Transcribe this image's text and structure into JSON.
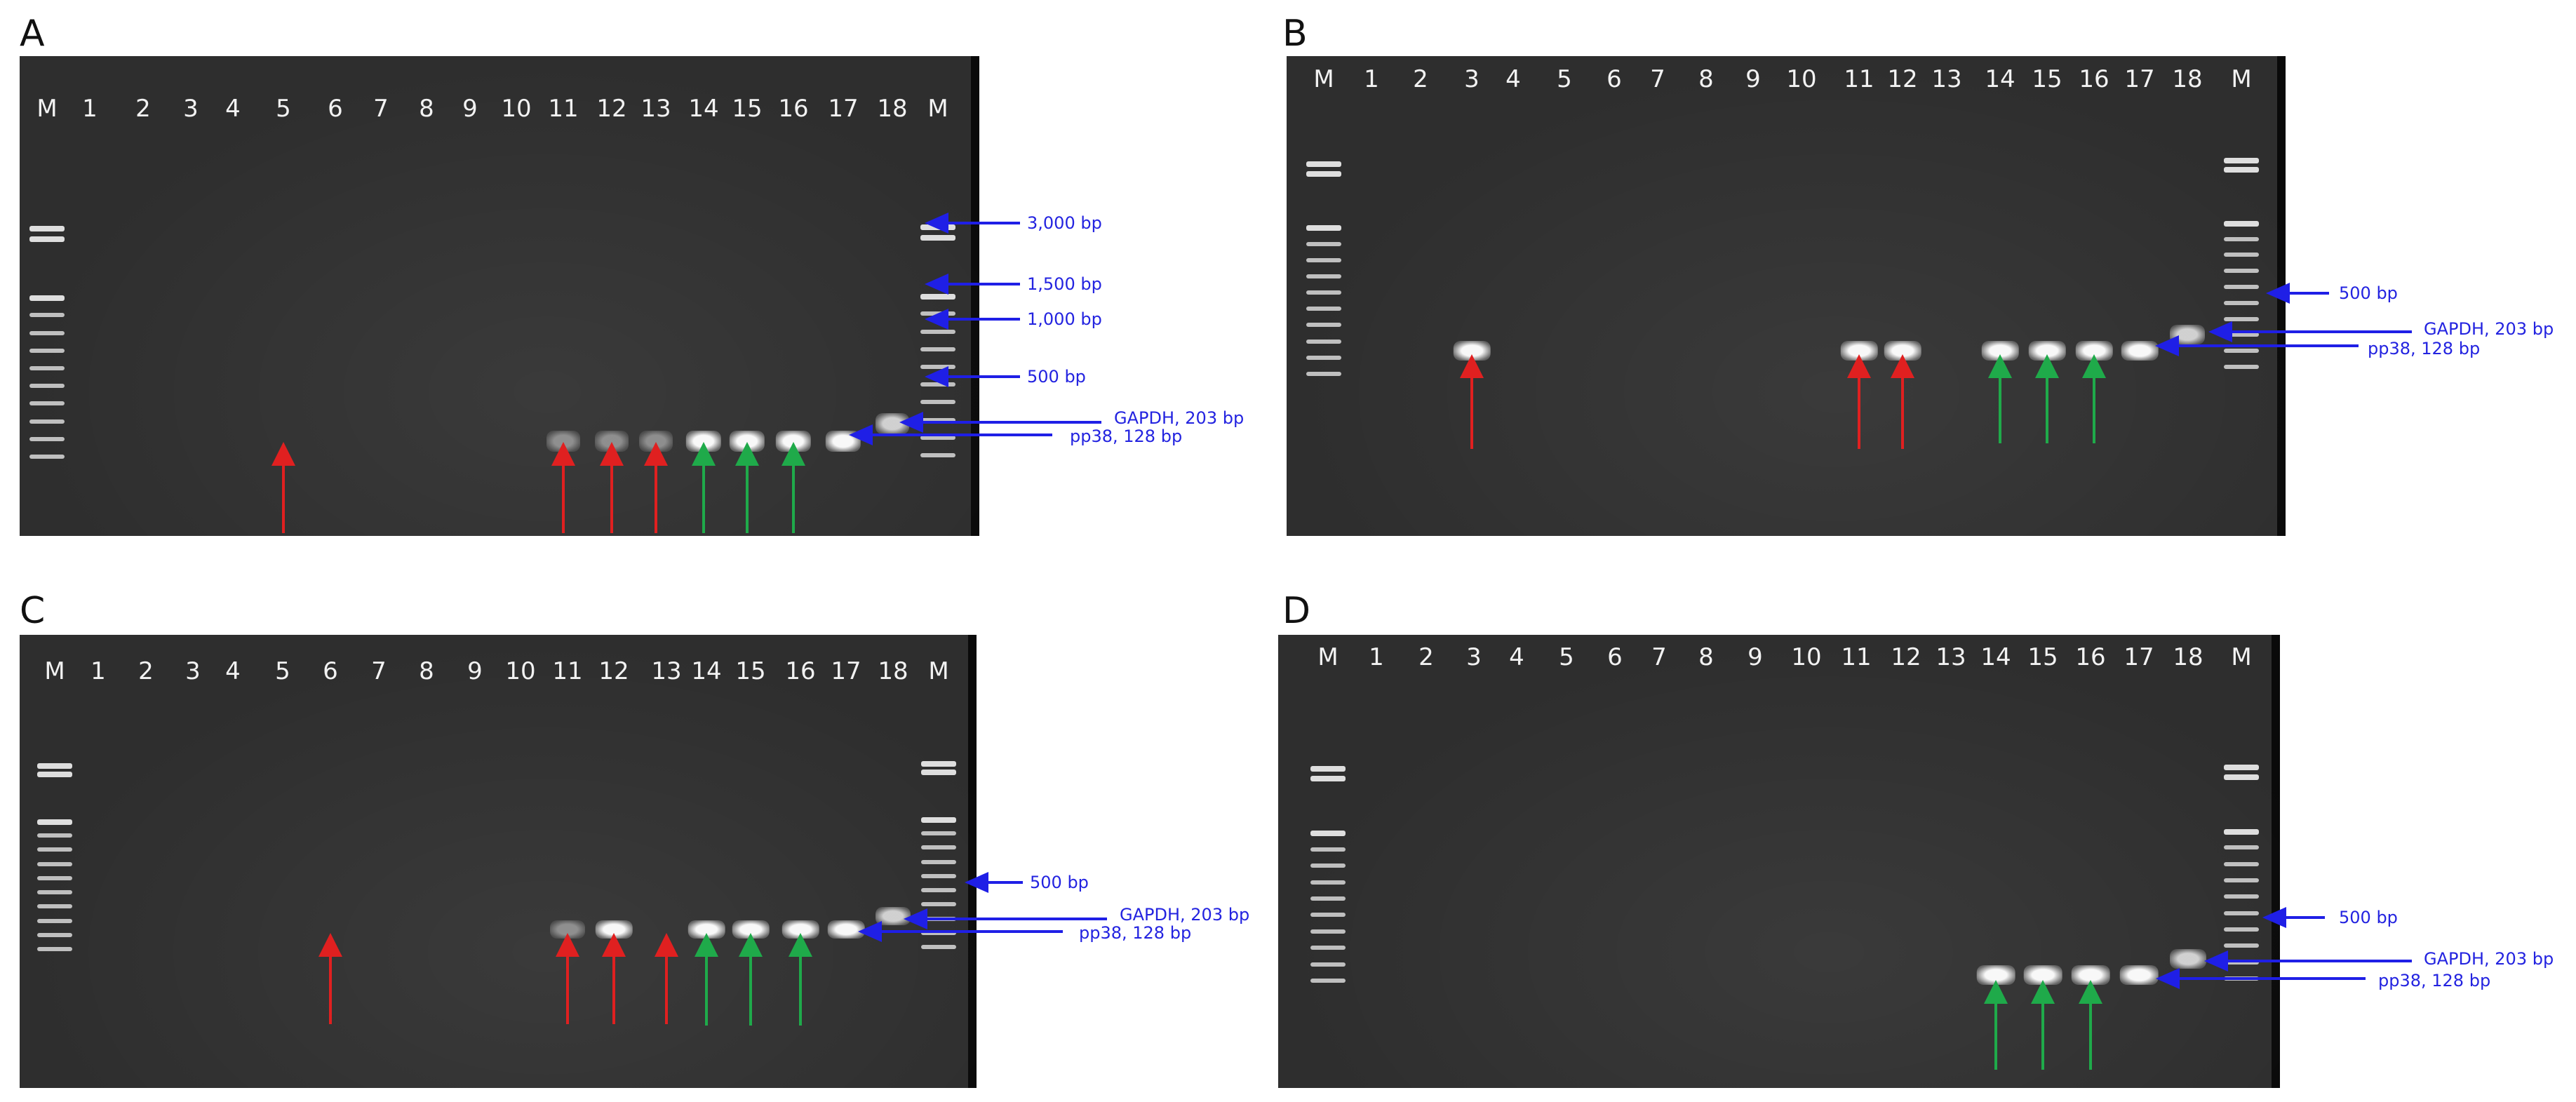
{
  "figure": {
    "lane_labels": [
      "M",
      "1",
      "2",
      "3",
      "4",
      "5",
      "6",
      "7",
      "8",
      "9",
      "10",
      "11",
      "12",
      "13",
      "14",
      "15",
      "16",
      "17",
      "18",
      "M"
    ],
    "colors": {
      "positive_arrow": "#e02020",
      "reference_arrow": "#1faa4a",
      "size_marker_arrow": "#1f1fe6",
      "gel_background": "#2e2e2e",
      "band": "#f0f0f0"
    },
    "panels": [
      {
        "letter": "A",
        "red_arrow_lanes": [
          5,
          11,
          12,
          13
        ],
        "green_arrow_lanes": [
          14,
          15,
          16
        ],
        "bright_band_lanes": [
          14,
          15,
          16,
          17
        ],
        "faint_band_lanes": [
          11,
          12,
          13
        ],
        "gapdh_band_lane": 18,
        "annotations": [
          "3,000 bp",
          "1,500 bp",
          "1,000 bp",
          "500 bp",
          "GAPDH, 203 bp",
          "pp38, 128 bp"
        ]
      },
      {
        "letter": "B",
        "red_arrow_lanes": [
          3,
          11,
          12
        ],
        "green_arrow_lanes": [
          14,
          15,
          16
        ],
        "bright_band_lanes": [
          3,
          11,
          12,
          14,
          15,
          16,
          17
        ],
        "faint_band_lanes": [],
        "gapdh_band_lane": 18,
        "annotations": [
          "500 bp",
          "GAPDH, 203 bp",
          "pp38, 128 bp"
        ]
      },
      {
        "letter": "C",
        "red_arrow_lanes": [
          6,
          11,
          12,
          13
        ],
        "green_arrow_lanes": [
          14,
          15,
          16
        ],
        "bright_band_lanes": [
          12,
          14,
          15,
          16,
          17
        ],
        "faint_band_lanes": [
          11
        ],
        "gapdh_band_lane": 18,
        "annotations": [
          "500 bp",
          "GAPDH, 203 bp",
          "pp38, 128 bp"
        ]
      },
      {
        "letter": "D",
        "red_arrow_lanes": [],
        "green_arrow_lanes": [
          14,
          15,
          16
        ],
        "bright_band_lanes": [
          14,
          15,
          16,
          17
        ],
        "faint_band_lanes": [],
        "gapdh_band_lane": 18,
        "annotations": [
          "500 bp",
          "GAPDH, 203 bp",
          "pp38, 128 bp"
        ]
      }
    ]
  }
}
